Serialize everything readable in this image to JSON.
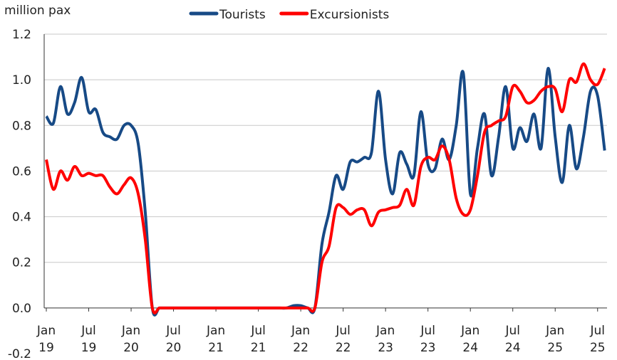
{
  "chart_data": {
    "type": "line",
    "y_axis_label": "million pax",
    "categories": [
      "Jan 19",
      null,
      null,
      null,
      null,
      null,
      "Jul 19",
      null,
      null,
      null,
      null,
      null,
      "Jan 20",
      null,
      null,
      null,
      null,
      null,
      "Jul 20",
      null,
      null,
      null,
      null,
      null,
      "Jan 21",
      null,
      null,
      null,
      null,
      null,
      "Jul 21",
      null,
      null,
      null,
      null,
      null,
      "Jan 22",
      null,
      null,
      null,
      null,
      null,
      "Jul 22",
      null,
      null,
      null,
      null,
      null,
      "Jan 23",
      null,
      null,
      null,
      null,
      null,
      "Jul 23",
      null,
      null,
      null,
      null,
      null,
      "Jan 24",
      null,
      null,
      null,
      null,
      null,
      "Jul 24",
      null,
      null,
      null,
      null,
      null,
      "Jan 25",
      null,
      null,
      null,
      null,
      null,
      "Jul 25",
      null
    ],
    "series": [
      {
        "name": "Tourists",
        "color": "#174a86",
        "values": [
          0.84,
          0.81,
          0.97,
          0.85,
          0.9,
          1.01,
          0.86,
          0.87,
          0.77,
          0.75,
          0.74,
          0.8,
          0.8,
          0.72,
          0.42,
          0.0,
          0.0,
          0.0,
          0.0,
          0.0,
          0.0,
          0.0,
          0.0,
          0.0,
          0.0,
          0.0,
          0.0,
          0.0,
          0.0,
          0.0,
          0.0,
          0.0,
          0.0,
          0.0,
          0.0,
          0.01,
          0.01,
          0.0,
          0.0,
          0.28,
          0.42,
          0.58,
          0.52,
          0.64,
          0.64,
          0.66,
          0.68,
          0.95,
          0.65,
          0.5,
          0.68,
          0.63,
          0.58,
          0.86,
          0.63,
          0.61,
          0.74,
          0.65,
          0.8,
          1.03,
          0.5,
          0.7,
          0.85,
          0.58,
          0.75,
          0.97,
          0.7,
          0.79,
          0.73,
          0.85,
          0.7,
          1.05,
          0.75,
          0.55,
          0.8,
          0.61,
          0.75,
          0.95,
          0.93,
          0.69
        ]
      },
      {
        "name": "Excursionists",
        "color": "#ff0000",
        "values": [
          0.65,
          0.52,
          0.6,
          0.56,
          0.62,
          0.58,
          0.59,
          0.58,
          0.58,
          0.53,
          0.5,
          0.54,
          0.57,
          0.5,
          0.3,
          0.0,
          0.0,
          0.0,
          0.0,
          0.0,
          0.0,
          0.0,
          0.0,
          0.0,
          0.0,
          0.0,
          0.0,
          0.0,
          0.0,
          0.0,
          0.0,
          0.0,
          0.0,
          0.0,
          0.0,
          0.0,
          0.0,
          0.0,
          0.0,
          0.2,
          0.27,
          0.44,
          0.44,
          0.41,
          0.43,
          0.43,
          0.36,
          0.42,
          0.43,
          0.44,
          0.45,
          0.52,
          0.45,
          0.62,
          0.66,
          0.65,
          0.71,
          0.65,
          0.48,
          0.41,
          0.43,
          0.58,
          0.77,
          0.8,
          0.82,
          0.84,
          0.97,
          0.95,
          0.9,
          0.91,
          0.95,
          0.97,
          0.96,
          0.86,
          1.0,
          0.99,
          1.07,
          1.0,
          0.98,
          1.05
        ]
      }
    ],
    "ylim": [
      -0.2,
      1.2
    ],
    "yticks": [
      {
        "value": -0.2,
        "label": "-0.2"
      },
      {
        "value": 0,
        "label": "0.0"
      },
      0.2,
      0.4,
      0.6,
      0.8,
      {
        "value": 1,
        "label": "1.0"
      },
      1.2
    ],
    "grid": true,
    "legend": "top"
  }
}
